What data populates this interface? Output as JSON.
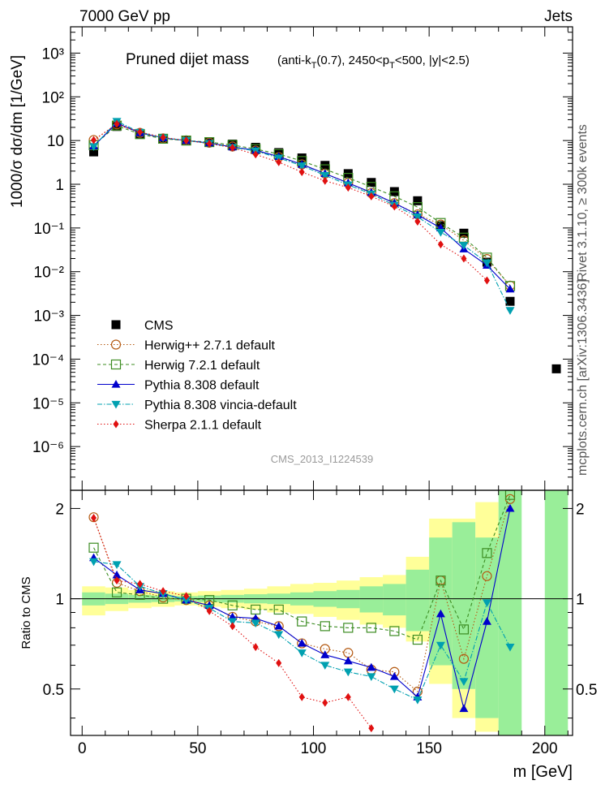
{
  "header": {
    "left": "7000 GeV pp",
    "right": "Jets"
  },
  "side": {
    "rivet": "Rivet 3.1.10, ≥ 300k events",
    "mcplots": "mcplots.cern.ch [arXiv:1306.3436]"
  },
  "chart_data": [
    {
      "type": "scatter",
      "panel": "main",
      "title_main": "Pruned dijet mass",
      "title_sub": "(anti-k",
      "title_sub_T": "T",
      "title_sub_mid": "(0.7), 2450<p",
      "title_sub_T2": "T",
      "title_sub_end": "<500, |y|<2.5)",
      "ylabel": "1000/σ dσ/dm [1/GeV]",
      "watermark": "CMS_2013_I1224539",
      "y_scale": "log",
      "xlim": [
        -5,
        212
      ],
      "ylim": [
        1e-07,
        4000
      ],
      "y_tick_labels": [
        "10⁻⁶",
        "10⁻⁵",
        "10⁻⁴",
        "10⁻³",
        "10⁻²",
        "10⁻¹",
        "1",
        "10",
        "10²",
        "10³"
      ],
      "x": [
        5,
        15,
        25,
        35,
        45,
        55,
        65,
        75,
        85,
        95,
        105,
        115,
        125,
        135,
        145,
        155,
        165,
        175,
        185,
        205
      ],
      "series": [
        {
          "name": "CMS",
          "color": "#000000",
          "marker": "square-filled",
          "line": "none",
          "values": [
            5.5,
            21,
            14,
            11,
            10,
            9.3,
            8.3,
            7.0,
            5.3,
            4.0,
            2.7,
            1.75,
            1.1,
            0.68,
            0.42,
            0.113,
            0.076,
            0.0165,
            0.0021,
            6e-05
          ]
        },
        {
          "name": "Herwig++ 2.7.1 default",
          "color": "#b45a12",
          "marker": "circle-open",
          "line": "dotted",
          "values": [
            10.3,
            23.5,
            15,
            11.2,
            10.1,
            8.9,
            7.3,
            5.9,
            4.2,
            2.85,
            1.75,
            1.08,
            0.63,
            0.37,
            0.205,
            0.12,
            0.052,
            0.0195,
            0.0048,
            null
          ]
        },
        {
          "name": "Herwig 7.2.1 default",
          "color": "#3c8c22",
          "marker": "square-open",
          "line": "dashed",
          "values": [
            7.8,
            22,
            14,
            11,
            10,
            9.2,
            7.9,
            6.4,
            4.9,
            3.4,
            2.2,
            1.4,
            0.87,
            0.53,
            0.3,
            0.13,
            0.06,
            0.021,
            0.0047,
            null
          ]
        },
        {
          "name": "Pythia 8.308 default",
          "color": "#0000cc",
          "marker": "triangle-up",
          "line": "solid",
          "values": [
            7.5,
            25,
            15,
            11.5,
            10,
            8.8,
            7.1,
            6.0,
            4.3,
            2.85,
            1.75,
            1.07,
            0.65,
            0.37,
            0.2,
            0.1,
            0.033,
            0.014,
            0.004,
            null
          ]
        },
        {
          "name": "Pythia 8.308 vincia-default",
          "color": "#00a0b0",
          "marker": "triangle-down",
          "line": "dashdot",
          "values": [
            7.3,
            27.5,
            15.5,
            11.5,
            10,
            8.6,
            7.0,
            5.8,
            4.0,
            2.65,
            1.6,
            0.97,
            0.6,
            0.33,
            0.18,
            0.08,
            0.04,
            0.016,
            0.0013,
            null
          ]
        },
        {
          "name": "Sherpa 2.1.1 default",
          "color": "#e01010",
          "marker": "diamond",
          "line": "dotted",
          "values": [
            10.2,
            24,
            15.7,
            11.8,
            10,
            8.5,
            6.9,
            4.8,
            3.2,
            1.9,
            1.2,
            0.84,
            0.53,
            0.31,
            0.14,
            0.042,
            0.02,
            0.0063,
            null,
            null
          ]
        }
      ]
    },
    {
      "type": "scatter",
      "panel": "ratio",
      "ylabel": "Ratio to CMS",
      "xlabel": "m [GeV]",
      "xlim": [
        -5,
        212
      ],
      "ylim": [
        0.35,
        2.3
      ],
      "x_ticks": [
        0,
        50,
        100,
        150,
        200
      ],
      "y_ticks_left": [
        0.5,
        1,
        2
      ],
      "y_ticks_right": [
        0.5,
        1,
        2
      ],
      "bins": [
        [
          0,
          10
        ],
        [
          10,
          20
        ],
        [
          20,
          30
        ],
        [
          30,
          40
        ],
        [
          40,
          50
        ],
        [
          50,
          60
        ],
        [
          60,
          70
        ],
        [
          70,
          80
        ],
        [
          80,
          90
        ],
        [
          90,
          100
        ],
        [
          100,
          110
        ],
        [
          110,
          120
        ],
        [
          120,
          130
        ],
        [
          130,
          140
        ],
        [
          140,
          150
        ],
        [
          150,
          160
        ],
        [
          160,
          170
        ],
        [
          170,
          180
        ],
        [
          180,
          190
        ],
        [
          200,
          210
        ]
      ],
      "band_stat": [
        [
          0.95,
          1.05
        ],
        [
          0.96,
          1.04
        ],
        [
          0.97,
          1.03
        ],
        [
          0.975,
          1.025
        ],
        [
          0.98,
          1.02
        ],
        [
          0.975,
          1.025
        ],
        [
          0.97,
          1.03
        ],
        [
          0.965,
          1.035
        ],
        [
          0.96,
          1.04
        ],
        [
          0.95,
          1.05
        ],
        [
          0.94,
          1.06
        ],
        [
          0.93,
          1.07
        ],
        [
          0.9,
          1.1
        ],
        [
          0.88,
          1.12
        ],
        [
          0.78,
          1.25
        ],
        [
          0.6,
          1.6
        ],
        [
          0.5,
          1.8
        ],
        [
          0.4,
          1.6
        ],
        [
          0.3,
          2.3
        ],
        [
          0.3,
          2.3
        ]
      ],
      "band_total": [
        [
          0.88,
          1.1
        ],
        [
          0.91,
          1.09
        ],
        [
          0.93,
          1.07
        ],
        [
          0.94,
          1.06
        ],
        [
          0.95,
          1.05
        ],
        [
          0.94,
          1.06
        ],
        [
          0.93,
          1.07
        ],
        [
          0.92,
          1.08
        ],
        [
          0.9,
          1.1
        ],
        [
          0.89,
          1.12
        ],
        [
          0.87,
          1.13
        ],
        [
          0.85,
          1.15
        ],
        [
          0.82,
          1.18
        ],
        [
          0.8,
          1.2
        ],
        [
          0.72,
          1.38
        ],
        [
          0.52,
          1.85
        ],
        [
          0.4,
          1.85
        ],
        [
          0.36,
          2.1
        ],
        null,
        null
      ],
      "x": [
        5,
        15,
        25,
        35,
        45,
        55,
        65,
        75,
        85,
        95,
        105,
        115,
        125,
        135,
        145,
        155,
        165,
        175,
        185
      ],
      "series": [
        {
          "name": "Herwig++ 2.7.1 default",
          "color": "#b45a12",
          "marker": "circle-open",
          "line": "dotted",
          "values": [
            1.87,
            1.13,
            1.06,
            1.01,
            0.99,
            0.95,
            0.87,
            0.84,
            0.81,
            0.71,
            0.68,
            0.66,
            0.58,
            0.57,
            0.49,
            1.15,
            0.63,
            1.19,
            2.15
          ]
        },
        {
          "name": "Herwig 7.2.1 default",
          "color": "#3c8c22",
          "marker": "square-open",
          "line": "dashed",
          "values": [
            1.48,
            1.05,
            1.03,
            1.0,
            1.0,
            0.99,
            0.95,
            0.92,
            0.92,
            0.84,
            0.81,
            0.8,
            0.8,
            0.78,
            0.73,
            1.15,
            0.79,
            1.42,
            2.22
          ]
        },
        {
          "name": "Pythia 8.308 default",
          "color": "#0000cc",
          "marker": "triangle-up",
          "line": "solid",
          "values": [
            1.37,
            1.2,
            1.07,
            1.04,
            0.99,
            0.95,
            0.87,
            0.86,
            0.81,
            0.71,
            0.65,
            0.62,
            0.59,
            0.55,
            0.47,
            0.89,
            0.43,
            0.84,
            2.0
          ]
        },
        {
          "name": "Pythia 8.308 vincia-default",
          "color": "#00a0b0",
          "marker": "triangle-down",
          "line": "dashdot",
          "values": [
            1.33,
            1.3,
            1.1,
            1.04,
            0.99,
            0.93,
            0.84,
            0.83,
            0.76,
            0.66,
            0.6,
            0.57,
            0.55,
            0.5,
            0.46,
            0.7,
            0.53,
            0.97,
            0.69
          ]
        },
        {
          "name": "Sherpa 2.1.1 default",
          "color": "#e01010",
          "marker": "diamond",
          "line": "dotted",
          "values": [
            1.86,
            1.15,
            1.12,
            1.06,
            1.02,
            0.91,
            0.81,
            0.69,
            0.61,
            0.47,
            0.45,
            0.47,
            0.37,
            null,
            null,
            null,
            null,
            null,
            null
          ]
        }
      ]
    }
  ]
}
